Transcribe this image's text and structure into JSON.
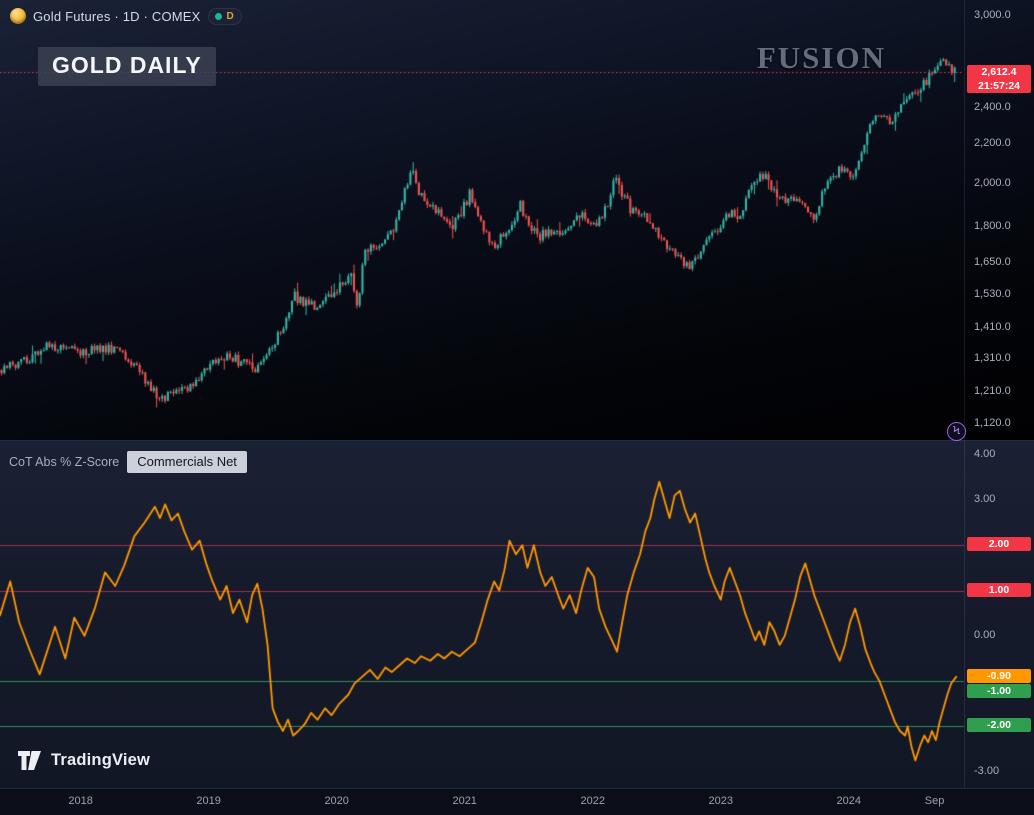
{
  "header": {
    "symbol_title": "Gold Futures · 1D · COMEX",
    "interval_letter": "D",
    "chart_title": "GOLD DAILY",
    "watermark": "FUSION"
  },
  "colors": {
    "up_candle": "#36b5a6",
    "down_candle": "#f0544f",
    "badge_red": "#f23645",
    "badge_green": "#2f9e4f",
    "badge_orange": "#ff9800",
    "zscore_line": "#ff9800",
    "level_red": "#a12f4e",
    "level_green": "#2f8f4e",
    "accent_purple": "#a45df0",
    "status_dot": "#17b6a2"
  },
  "price_scale": {
    "ticks": [
      {
        "label": "3,000.0",
        "price": 3000
      },
      {
        "label": "2,400.0",
        "price": 2400
      },
      {
        "label": "2,200.0",
        "price": 2200
      },
      {
        "label": "2,000.0",
        "price": 2000
      },
      {
        "label": "1,800.0",
        "price": 1800
      },
      {
        "label": "1,650.0",
        "price": 1650
      },
      {
        "label": "1,530.0",
        "price": 1530
      },
      {
        "label": "1,410.0",
        "price": 1410
      },
      {
        "label": "1,310.0",
        "price": 1310
      },
      {
        "label": "1,210.0",
        "price": 1210
      },
      {
        "label": "1,120.0",
        "price": 1120
      }
    ],
    "last": {
      "price_label": "2,612.4",
      "time_label": "21:57:24"
    }
  },
  "indicator_pane": {
    "legend_label": "CoT Abs % Z-Score",
    "source_button_label": "Commercials Net",
    "ticks": [
      {
        "label": "4.00",
        "value": 4
      },
      {
        "label": "3.00",
        "value": 3
      },
      {
        "label": "0.00",
        "value": 0
      },
      {
        "label": "-3.00",
        "value": -3
      }
    ],
    "badges": [
      {
        "label": "2.00",
        "value": 2,
        "color": "red"
      },
      {
        "label": "1.00",
        "value": 1,
        "color": "red"
      },
      {
        "label": "-0.90",
        "value": -0.9,
        "color": "orange"
      },
      {
        "label": "-1.00",
        "value": -1,
        "color": "green",
        "y_offset": 11
      },
      {
        "label": "-2.00",
        "value": -2,
        "color": "green"
      }
    ]
  },
  "time_axis": {
    "labels": [
      {
        "text": "2018",
        "year": 2018
      },
      {
        "text": "2019",
        "year": 2019
      },
      {
        "text": "2020",
        "year": 2020
      },
      {
        "text": "2021",
        "year": 2021
      },
      {
        "text": "2022",
        "year": 2022
      },
      {
        "text": "2023",
        "year": 2023
      },
      {
        "text": "2024",
        "year": 2024
      },
      {
        "text": "Sep",
        "year": 2024.67
      }
    ]
  },
  "footer": {
    "brand": "TradingView"
  },
  "chart_data": [
    {
      "type": "candlestick",
      "title": "Gold Futures 1D COMEX",
      "y_scale": "log",
      "xlim": [
        2017.37,
        2024.9
      ],
      "ylim": [
        1074,
        3110
      ],
      "up_color": "#36b5a6",
      "down_color": "#f0544f",
      "last_price_line": {
        "price": 2612.4,
        "color": "#f23645"
      },
      "anchors": [
        [
          2017.37,
          1270
        ],
        [
          2017.56,
          1300
        ],
        [
          2017.72,
          1345
        ],
        [
          2018.0,
          1330
        ],
        [
          2018.15,
          1338
        ],
        [
          2018.27,
          1342
        ],
        [
          2018.38,
          1308
        ],
        [
          2018.5,
          1245
        ],
        [
          2018.62,
          1185
        ],
        [
          2018.73,
          1202
        ],
        [
          2018.89,
          1232
        ],
        [
          2019.0,
          1282
        ],
        [
          2019.13,
          1320
        ],
        [
          2019.24,
          1298
        ],
        [
          2019.36,
          1278
        ],
        [
          2019.48,
          1330
        ],
        [
          2019.59,
          1420
        ],
        [
          2019.67,
          1520
        ],
        [
          2019.75,
          1498
        ],
        [
          2019.85,
          1473
        ],
        [
          2019.95,
          1517
        ],
        [
          2020.02,
          1560
        ],
        [
          2020.12,
          1590
        ],
        [
          2020.16,
          1480
        ],
        [
          2020.22,
          1700
        ],
        [
          2020.3,
          1718
        ],
        [
          2020.38,
          1748
        ],
        [
          2020.45,
          1802
        ],
        [
          2020.53,
          1958
        ],
        [
          2020.59,
          2058
        ],
        [
          2020.65,
          1942
        ],
        [
          2020.73,
          1902
        ],
        [
          2020.8,
          1868
        ],
        [
          2020.88,
          1782
        ],
        [
          2020.96,
          1842
        ],
        [
          2021.04,
          1948
        ],
        [
          2021.12,
          1840
        ],
        [
          2021.2,
          1712
        ],
        [
          2021.27,
          1742
        ],
        [
          2021.35,
          1782
        ],
        [
          2021.43,
          1898
        ],
        [
          2021.51,
          1802
        ],
        [
          2021.59,
          1752
        ],
        [
          2021.66,
          1790
        ],
        [
          2021.74,
          1762
        ],
        [
          2021.82,
          1800
        ],
        [
          2021.9,
          1862
        ],
        [
          2021.98,
          1792
        ],
        [
          2022.05,
          1832
        ],
        [
          2022.12,
          1912
        ],
        [
          2022.17,
          2040
        ],
        [
          2022.23,
          1948
        ],
        [
          2022.29,
          1882
        ],
        [
          2022.37,
          1842
        ],
        [
          2022.45,
          1830
        ],
        [
          2022.52,
          1762
        ],
        [
          2022.6,
          1702
        ],
        [
          2022.68,
          1662
        ],
        [
          2022.76,
          1640
        ],
        [
          2022.84,
          1682
        ],
        [
          2022.91,
          1772
        ],
        [
          2023.0,
          1802
        ],
        [
          2023.07,
          1862
        ],
        [
          2023.15,
          1832
        ],
        [
          2023.23,
          1988
        ],
        [
          2023.3,
          2018
        ],
        [
          2023.34,
          2042
        ],
        [
          2023.42,
          1958
        ],
        [
          2023.5,
          1922
        ],
        [
          2023.58,
          1932
        ],
        [
          2023.66,
          1902
        ],
        [
          2023.73,
          1832
        ],
        [
          2023.81,
          1990
        ],
        [
          2023.89,
          2038
        ],
        [
          2023.93,
          2068
        ],
        [
          2024.0,
          2042
        ],
        [
          2024.05,
          2032
        ],
        [
          2024.11,
          2158
        ],
        [
          2024.17,
          2298
        ],
        [
          2024.23,
          2348
        ],
        [
          2024.28,
          2332
        ],
        [
          2024.34,
          2322
        ],
        [
          2024.4,
          2398
        ],
        [
          2024.46,
          2468
        ],
        [
          2024.52,
          2502
        ],
        [
          2024.57,
          2522
        ],
        [
          2024.62,
          2578
        ],
        [
          2024.67,
          2638
        ],
        [
          2024.73,
          2698
        ],
        [
          2024.77,
          2662
        ],
        [
          2024.8,
          2632
        ],
        [
          2024.84,
          2612.4
        ]
      ]
    },
    {
      "type": "line",
      "title": "CoT Abs % Z-Score (Commercials Net)",
      "xlim": [
        2017.37,
        2024.9
      ],
      "ylim": [
        -3.38,
        4.3
      ],
      "line_color": "#ff9800",
      "last_value": -0.9,
      "levels": [
        {
          "value": 2,
          "color": "#a12f4e"
        },
        {
          "value": 1,
          "color": "#a12f4e"
        },
        {
          "value": -1,
          "color": "#2f8f4e"
        },
        {
          "value": -2,
          "color": "#2f8f4e"
        }
      ],
      "points": [
        [
          2017.37,
          0.45
        ],
        [
          2017.45,
          1.2
        ],
        [
          2017.52,
          0.3
        ],
        [
          2017.6,
          -0.3
        ],
        [
          2017.68,
          -0.85
        ],
        [
          2017.8,
          0.2
        ],
        [
          2017.88,
          -0.5
        ],
        [
          2017.95,
          0.4
        ],
        [
          2018.03,
          0.0
        ],
        [
          2018.11,
          0.6
        ],
        [
          2018.19,
          1.4
        ],
        [
          2018.27,
          1.1
        ],
        [
          2018.34,
          1.55
        ],
        [
          2018.42,
          2.2
        ],
        [
          2018.5,
          2.5
        ],
        [
          2018.58,
          2.85
        ],
        [
          2018.62,
          2.6
        ],
        [
          2018.66,
          2.9
        ],
        [
          2018.71,
          2.55
        ],
        [
          2018.76,
          2.7
        ],
        [
          2018.81,
          2.3
        ],
        [
          2018.87,
          1.9
        ],
        [
          2018.93,
          2.1
        ],
        [
          2018.98,
          1.6
        ],
        [
          2019.03,
          1.2
        ],
        [
          2019.09,
          0.8
        ],
        [
          2019.14,
          1.1
        ],
        [
          2019.19,
          0.5
        ],
        [
          2019.24,
          0.8
        ],
        [
          2019.3,
          0.3
        ],
        [
          2019.34,
          0.9
        ],
        [
          2019.38,
          1.15
        ],
        [
          2019.42,
          0.6
        ],
        [
          2019.46,
          -0.2
        ],
        [
          2019.5,
          -1.6
        ],
        [
          2019.54,
          -1.9
        ],
        [
          2019.58,
          -2.1
        ],
        [
          2019.62,
          -1.85
        ],
        [
          2019.66,
          -2.2
        ],
        [
          2019.7,
          -2.1
        ],
        [
          2019.75,
          -1.95
        ],
        [
          2019.8,
          -1.7
        ],
        [
          2019.85,
          -1.85
        ],
        [
          2019.91,
          -1.6
        ],
        [
          2019.96,
          -1.75
        ],
        [
          2020.02,
          -1.5
        ],
        [
          2020.09,
          -1.3
        ],
        [
          2020.14,
          -1.05
        ],
        [
          2020.2,
          -0.9
        ],
        [
          2020.26,
          -0.75
        ],
        [
          2020.32,
          -0.95
        ],
        [
          2020.38,
          -0.7
        ],
        [
          2020.43,
          -0.8
        ],
        [
          2020.49,
          -0.65
        ],
        [
          2020.55,
          -0.5
        ],
        [
          2020.61,
          -0.6
        ],
        [
          2020.66,
          -0.45
        ],
        [
          2020.73,
          -0.55
        ],
        [
          2020.79,
          -0.4
        ],
        [
          2020.84,
          -0.5
        ],
        [
          2020.9,
          -0.35
        ],
        [
          2020.96,
          -0.45
        ],
        [
          2021.02,
          -0.3
        ],
        [
          2021.08,
          -0.15
        ],
        [
          2021.13,
          0.3
        ],
        [
          2021.18,
          0.8
        ],
        [
          2021.23,
          1.2
        ],
        [
          2021.27,
          1.0
        ],
        [
          2021.31,
          1.45
        ],
        [
          2021.35,
          2.1
        ],
        [
          2021.4,
          1.8
        ],
        [
          2021.45,
          2.0
        ],
        [
          2021.49,
          1.5
        ],
        [
          2021.54,
          2.0
        ],
        [
          2021.59,
          1.4
        ],
        [
          2021.63,
          1.1
        ],
        [
          2021.68,
          1.3
        ],
        [
          2021.73,
          0.9
        ],
        [
          2021.77,
          0.6
        ],
        [
          2021.82,
          0.9
        ],
        [
          2021.87,
          0.5
        ],
        [
          2021.91,
          1.0
        ],
        [
          2021.96,
          1.5
        ],
        [
          2022.01,
          1.3
        ],
        [
          2022.05,
          0.6
        ],
        [
          2022.1,
          0.2
        ],
        [
          2022.15,
          -0.1
        ],
        [
          2022.19,
          -0.35
        ],
        [
          2022.23,
          0.3
        ],
        [
          2022.27,
          0.9
        ],
        [
          2022.32,
          1.4
        ],
        [
          2022.37,
          1.8
        ],
        [
          2022.41,
          2.3
        ],
        [
          2022.45,
          2.6
        ],
        [
          2022.48,
          3.0
        ],
        [
          2022.52,
          3.4
        ],
        [
          2022.56,
          3.0
        ],
        [
          2022.6,
          2.6
        ],
        [
          2022.64,
          3.1
        ],
        [
          2022.68,
          3.2
        ],
        [
          2022.72,
          2.8
        ],
        [
          2022.76,
          2.5
        ],
        [
          2022.8,
          2.7
        ],
        [
          2022.84,
          2.2
        ],
        [
          2022.88,
          1.7
        ],
        [
          2022.91,
          1.4
        ],
        [
          2022.95,
          1.1
        ],
        [
          2023.0,
          0.8
        ],
        [
          2023.03,
          1.2
        ],
        [
          2023.07,
          1.5
        ],
        [
          2023.11,
          1.2
        ],
        [
          2023.15,
          0.9
        ],
        [
          2023.19,
          0.5
        ],
        [
          2023.23,
          0.2
        ],
        [
          2023.27,
          -0.1
        ],
        [
          2023.3,
          0.1
        ],
        [
          2023.34,
          -0.2
        ],
        [
          2023.38,
          0.3
        ],
        [
          2023.42,
          0.1
        ],
        [
          2023.46,
          -0.2
        ],
        [
          2023.5,
          0.0
        ],
        [
          2023.54,
          0.4
        ],
        [
          2023.58,
          0.8
        ],
        [
          2023.62,
          1.3
        ],
        [
          2023.66,
          1.6
        ],
        [
          2023.7,
          1.2
        ],
        [
          2023.73,
          0.9
        ],
        [
          2023.77,
          0.6
        ],
        [
          2023.81,
          0.3
        ],
        [
          2023.85,
          0.0
        ],
        [
          2023.89,
          -0.3
        ],
        [
          2023.93,
          -0.55
        ],
        [
          2023.97,
          -0.2
        ],
        [
          2024.01,
          0.3
        ],
        [
          2024.05,
          0.6
        ],
        [
          2024.09,
          0.2
        ],
        [
          2024.13,
          -0.3
        ],
        [
          2024.17,
          -0.6
        ],
        [
          2024.2,
          -0.8
        ],
        [
          2024.24,
          -1.0
        ],
        [
          2024.28,
          -1.3
        ],
        [
          2024.32,
          -1.6
        ],
        [
          2024.36,
          -1.9
        ],
        [
          2024.4,
          -2.1
        ],
        [
          2024.44,
          -2.2
        ],
        [
          2024.46,
          -2.0
        ],
        [
          2024.49,
          -2.45
        ],
        [
          2024.52,
          -2.75
        ],
        [
          2024.56,
          -2.4
        ],
        [
          2024.59,
          -2.2
        ],
        [
          2024.62,
          -2.35
        ],
        [
          2024.65,
          -2.1
        ],
        [
          2024.68,
          -2.3
        ],
        [
          2024.71,
          -1.9
        ],
        [
          2024.74,
          -1.6
        ],
        [
          2024.77,
          -1.3
        ],
        [
          2024.8,
          -1.05
        ],
        [
          2024.84,
          -0.9
        ]
      ]
    }
  ]
}
